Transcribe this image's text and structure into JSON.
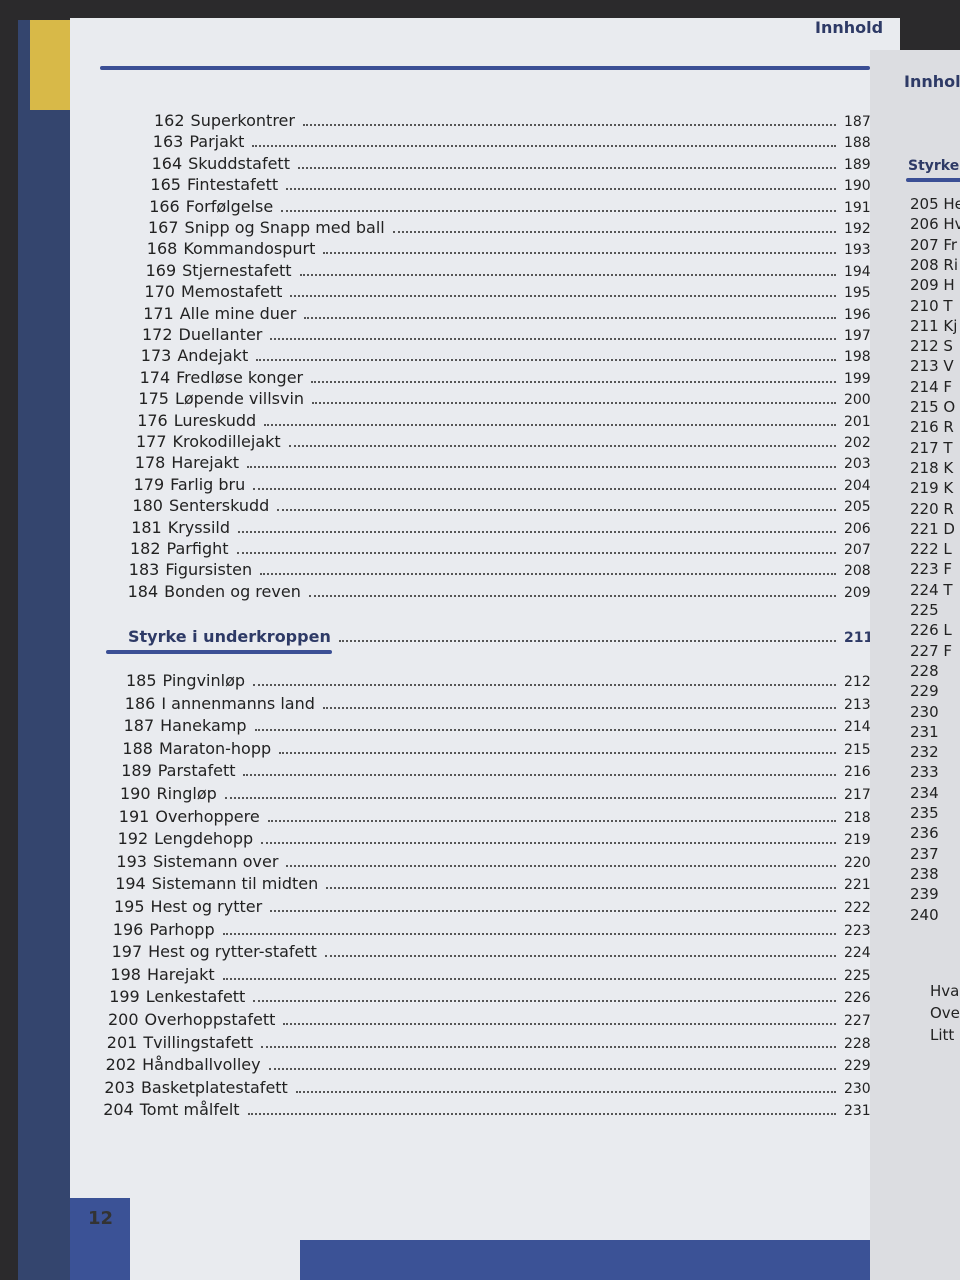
{
  "left_page": {
    "header": "Innhold",
    "page_number": "12",
    "entries": [
      {
        "no": 162,
        "title": "Superkontrer",
        "page": 187
      },
      {
        "no": 163,
        "title": "Parjakt",
        "page": 188
      },
      {
        "no": 164,
        "title": "Skuddstafett",
        "page": 189
      },
      {
        "no": 165,
        "title": "Fintestafett",
        "page": 190
      },
      {
        "no": 166,
        "title": "Forfølgelse",
        "page": 191
      },
      {
        "no": 167,
        "title": "Snipp og Snapp med ball",
        "page": 192
      },
      {
        "no": 168,
        "title": "Kommandospurt",
        "page": 193
      },
      {
        "no": 169,
        "title": "Stjernestafett",
        "page": 194
      },
      {
        "no": 170,
        "title": "Memostafett",
        "page": 195
      },
      {
        "no": 171,
        "title": "Alle mine duer",
        "page": 196
      },
      {
        "no": 172,
        "title": "Duellanter",
        "page": 197
      },
      {
        "no": 173,
        "title": "Andejakt",
        "page": 198
      },
      {
        "no": 174,
        "title": "Fredløse konger",
        "page": 199
      },
      {
        "no": 175,
        "title": "Løpende villsvin",
        "page": 200
      },
      {
        "no": 176,
        "title": "Lureskudd",
        "page": 201
      },
      {
        "no": 177,
        "title": "Krokodillejakt",
        "page": 202
      },
      {
        "no": 178,
        "title": "Harejakt",
        "page": 203
      },
      {
        "no": 179,
        "title": "Farlig bru",
        "page": 204
      },
      {
        "no": 180,
        "title": "Senterskudd",
        "page": 205
      },
      {
        "no": 181,
        "title": "Kryssild",
        "page": 206
      },
      {
        "no": 182,
        "title": "Parfight",
        "page": 207
      },
      {
        "no": 183,
        "title": "Figursisten",
        "page": 208
      },
      {
        "no": 184,
        "title": "Bonden og reven",
        "page": 209
      }
    ],
    "section": {
      "title": "Styrke i underkroppen",
      "page": 211,
      "entries": [
        {
          "no": 185,
          "title": "Pingvinløp",
          "page": 212
        },
        {
          "no": 186,
          "title": "I annenmanns land",
          "page": 213
        },
        {
          "no": 187,
          "title": "Hanekamp",
          "page": 214
        },
        {
          "no": 188,
          "title": "Maraton-hopp",
          "page": 215
        },
        {
          "no": 189,
          "title": "Parstafett",
          "page": 216
        },
        {
          "no": 190,
          "title": "Ringløp",
          "page": 217
        },
        {
          "no": 191,
          "title": "Overhoppere",
          "page": 218
        },
        {
          "no": 192,
          "title": "Lengdehopp",
          "page": 219
        },
        {
          "no": 193,
          "title": "Sistemann over",
          "page": 220
        },
        {
          "no": 194,
          "title": "Sistemann til midten",
          "page": 221
        },
        {
          "no": 195,
          "title": "Hest og rytter",
          "page": 222
        },
        {
          "no": 196,
          "title": "Parhopp",
          "page": 223
        },
        {
          "no": 197,
          "title": "Hest og rytter-stafett",
          "page": 224
        },
        {
          "no": 198,
          "title": "Harejakt",
          "page": 225
        },
        {
          "no": 199,
          "title": "Lenkestafett",
          "page": 226
        },
        {
          "no": 200,
          "title": "Overhoppstafett",
          "page": 227
        },
        {
          "no": 201,
          "title": "Tvillingstafett",
          "page": 228
        },
        {
          "no": 202,
          "title": "Håndballvolley",
          "page": 229
        },
        {
          "no": 203,
          "title": "Basketplatestafett",
          "page": 230
        },
        {
          "no": 204,
          "title": "Tomt målfelt",
          "page": 231
        }
      ]
    }
  },
  "right_page": {
    "header": "Innhol",
    "section": "Styrke",
    "lines": [
      "205 He",
      "206 Hv",
      "207 Fr",
      "208 Ri",
      "209 H",
      "210 T",
      "211 Kj",
      "212 S",
      "213 V",
      "214 F",
      "215 O",
      "216 R",
      "217 T",
      "218 K",
      "219 K",
      "220 R",
      "221 D",
      "222 L",
      "223 F",
      "224 T",
      "225",
      "226 L",
      "227 F",
      "228",
      "229",
      "230",
      "231",
      "232",
      "233",
      "234",
      "235",
      "236",
      "237",
      "238",
      "239",
      "240"
    ],
    "footer_lines": [
      "Hva",
      "Ove",
      "Litt"
    ]
  }
}
